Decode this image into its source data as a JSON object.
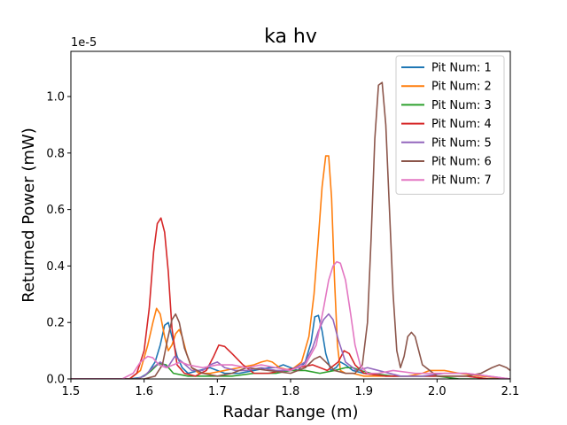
{
  "chart_data": {
    "type": "line",
    "title": "ka hv",
    "xlabel": "Radar Range (m)",
    "ylabel": "Returned Power (mW)",
    "y_offset_label": "1e-5",
    "xlim": [
      1.5,
      2.1
    ],
    "ylim": [
      0,
      1.16
    ],
    "xticks": [
      1.5,
      1.6,
      1.7,
      1.8,
      1.9,
      2.0,
      2.1
    ],
    "xtick_labels": [
      "1.5",
      "1.6",
      "1.7",
      "1.8",
      "1.9",
      "2.0",
      "2.1"
    ],
    "yticks": [
      0.0,
      0.2,
      0.4,
      0.6,
      0.8,
      1.0
    ],
    "ytick_labels": [
      "0.0",
      "0.2",
      "0.4",
      "0.6",
      "0.8",
      "1.0"
    ],
    "grid": false,
    "legend_position": "top-right",
    "series": [
      {
        "name": "Pit Num: 1",
        "color": "#1f77b4",
        "x": [
          1.5,
          1.58,
          1.595,
          1.605,
          1.615,
          1.622,
          1.628,
          1.633,
          1.638,
          1.645,
          1.652,
          1.66,
          1.675,
          1.69,
          1.71,
          1.73,
          1.75,
          1.77,
          1.78,
          1.79,
          1.8,
          1.81,
          1.82,
          1.828,
          1.833,
          1.838,
          1.843,
          1.848,
          1.855,
          1.862,
          1.868,
          1.875,
          1.885,
          1.9,
          1.93,
          1.96,
          1.99,
          2.01,
          2.04,
          2.07,
          2.1
        ],
        "y": [
          0,
          0,
          0.005,
          0.02,
          0.06,
          0.12,
          0.19,
          0.2,
          0.15,
          0.08,
          0.04,
          0.02,
          0.03,
          0.04,
          0.02,
          0.02,
          0.03,
          0.04,
          0.04,
          0.05,
          0.04,
          0.03,
          0.06,
          0.13,
          0.22,
          0.225,
          0.17,
          0.09,
          0.03,
          0.04,
          0.06,
          0.05,
          0.03,
          0.02,
          0.01,
          0.01,
          0.01,
          0.01,
          0.01,
          0.0,
          0.0
        ]
      },
      {
        "name": "Pit Num: 2",
        "color": "#ff7f0e",
        "x": [
          1.5,
          1.58,
          1.595,
          1.605,
          1.612,
          1.617,
          1.622,
          1.628,
          1.633,
          1.638,
          1.643,
          1.648,
          1.652,
          1.658,
          1.665,
          1.675,
          1.69,
          1.71,
          1.73,
          1.75,
          1.76,
          1.768,
          1.775,
          1.785,
          1.8,
          1.815,
          1.825,
          1.832,
          1.838,
          1.843,
          1.848,
          1.852,
          1.856,
          1.86,
          1.864,
          1.868,
          1.875,
          1.885,
          1.9,
          1.93,
          1.96,
          1.98,
          1.99,
          2.0,
          2.01,
          2.03,
          2.06,
          2.1
        ],
        "y": [
          0,
          0,
          0.03,
          0.12,
          0.2,
          0.25,
          0.23,
          0.15,
          0.1,
          0.12,
          0.16,
          0.175,
          0.15,
          0.09,
          0.04,
          0.02,
          0.02,
          0.03,
          0.04,
          0.05,
          0.06,
          0.065,
          0.06,
          0.04,
          0.03,
          0.06,
          0.15,
          0.3,
          0.5,
          0.68,
          0.79,
          0.79,
          0.64,
          0.35,
          0.12,
          0.03,
          0.02,
          0.02,
          0.01,
          0.01,
          0.01,
          0.02,
          0.03,
          0.03,
          0.03,
          0.02,
          0.01,
          0.0
        ]
      },
      {
        "name": "Pit Num: 3",
        "color": "#2ca02c",
        "x": [
          1.5,
          1.59,
          1.6,
          1.61,
          1.62,
          1.63,
          1.64,
          1.66,
          1.68,
          1.7,
          1.72,
          1.75,
          1.78,
          1.8,
          1.82,
          1.84,
          1.86,
          1.875,
          1.885,
          1.895,
          1.91,
          1.94,
          1.97,
          2.0,
          2.03,
          2.06,
          2.1
        ],
        "y": [
          0,
          0,
          0.01,
          0.03,
          0.055,
          0.05,
          0.02,
          0.01,
          0.01,
          0.01,
          0.01,
          0.02,
          0.02,
          0.03,
          0.03,
          0.02,
          0.03,
          0.04,
          0.04,
          0.03,
          0.02,
          0.01,
          0.01,
          0.01,
          0.0,
          0.0,
          0.0
        ]
      },
      {
        "name": "Pit Num: 4",
        "color": "#d62728",
        "x": [
          1.5,
          1.58,
          1.59,
          1.6,
          1.607,
          1.613,
          1.618,
          1.623,
          1.628,
          1.633,
          1.638,
          1.645,
          1.655,
          1.67,
          1.685,
          1.695,
          1.702,
          1.71,
          1.72,
          1.735,
          1.75,
          1.77,
          1.79,
          1.81,
          1.83,
          1.85,
          1.865,
          1.873,
          1.88,
          1.888,
          1.9,
          1.93,
          1.96,
          1.99,
          2.01,
          2.04,
          2.07,
          2.1
        ],
        "y": [
          0,
          0,
          0.02,
          0.1,
          0.25,
          0.45,
          0.55,
          0.57,
          0.52,
          0.38,
          0.18,
          0.05,
          0.02,
          0.01,
          0.03,
          0.08,
          0.12,
          0.115,
          0.09,
          0.05,
          0.02,
          0.02,
          0.03,
          0.04,
          0.05,
          0.03,
          0.06,
          0.1,
          0.09,
          0.05,
          0.02,
          0.01,
          0.01,
          0.01,
          0.01,
          0.01,
          0.0,
          0.0
        ]
      },
      {
        "name": "Pit Num: 5",
        "color": "#9467bd",
        "x": [
          1.5,
          1.59,
          1.6,
          1.612,
          1.622,
          1.632,
          1.642,
          1.652,
          1.665,
          1.68,
          1.69,
          1.7,
          1.71,
          1.725,
          1.74,
          1.76,
          1.78,
          1.8,
          1.82,
          1.83,
          1.838,
          1.845,
          1.852,
          1.858,
          1.865,
          1.875,
          1.89,
          1.905,
          1.92,
          1.95,
          1.98,
          2.01,
          2.04,
          2.07,
          2.1
        ],
        "y": [
          0,
          0,
          0.01,
          0.04,
          0.06,
          0.04,
          0.08,
          0.06,
          0.03,
          0.03,
          0.05,
          0.06,
          0.04,
          0.03,
          0.03,
          0.04,
          0.03,
          0.03,
          0.06,
          0.11,
          0.17,
          0.21,
          0.23,
          0.21,
          0.14,
          0.06,
          0.03,
          0.04,
          0.03,
          0.01,
          0.01,
          0.02,
          0.02,
          0.01,
          0.0
        ]
      },
      {
        "name": "Pit Num: 6",
        "color": "#8c564b",
        "x": [
          1.5,
          1.6,
          1.615,
          1.625,
          1.632,
          1.638,
          1.643,
          1.648,
          1.655,
          1.665,
          1.68,
          1.7,
          1.72,
          1.74,
          1.77,
          1.8,
          1.82,
          1.832,
          1.84,
          1.848,
          1.86,
          1.875,
          1.888,
          1.898,
          1.905,
          1.91,
          1.915,
          1.92,
          1.925,
          1.93,
          1.935,
          1.94,
          1.945,
          1.95,
          1.955,
          1.96,
          1.965,
          1.97,
          1.98,
          2.0,
          2.02,
          2.04,
          2.06,
          2.075,
          2.085,
          2.095,
          2.1
        ],
        "y": [
          0,
          0,
          0.01,
          0.05,
          0.14,
          0.21,
          0.23,
          0.2,
          0.11,
          0.04,
          0.02,
          0.01,
          0.02,
          0.04,
          0.03,
          0.02,
          0.04,
          0.07,
          0.08,
          0.06,
          0.03,
          0.02,
          0.02,
          0.05,
          0.2,
          0.5,
          0.85,
          1.04,
          1.05,
          0.9,
          0.6,
          0.3,
          0.1,
          0.04,
          0.08,
          0.15,
          0.165,
          0.15,
          0.05,
          0.01,
          0.01,
          0.01,
          0.02,
          0.04,
          0.05,
          0.04,
          0.03
        ]
      },
      {
        "name": "Pit Num: 7",
        "color": "#e377c2",
        "x": [
          1.5,
          1.57,
          1.585,
          1.595,
          1.605,
          1.612,
          1.62,
          1.63,
          1.64,
          1.65,
          1.66,
          1.68,
          1.7,
          1.72,
          1.74,
          1.76,
          1.78,
          1.8,
          1.82,
          1.835,
          1.845,
          1.852,
          1.858,
          1.863,
          1.868,
          1.875,
          1.882,
          1.888,
          1.895,
          1.905,
          1.92,
          1.94,
          1.97,
          2.0,
          2.02,
          2.04,
          2.07,
          2.1
        ],
        "y": [
          0,
          0,
          0.02,
          0.06,
          0.08,
          0.075,
          0.05,
          0.04,
          0.05,
          0.06,
          0.05,
          0.04,
          0.05,
          0.05,
          0.04,
          0.05,
          0.04,
          0.03,
          0.05,
          0.12,
          0.25,
          0.35,
          0.4,
          0.415,
          0.41,
          0.35,
          0.23,
          0.12,
          0.05,
          0.02,
          0.02,
          0.03,
          0.02,
          0.02,
          0.02,
          0.02,
          0.01,
          0.0
        ]
      }
    ]
  }
}
